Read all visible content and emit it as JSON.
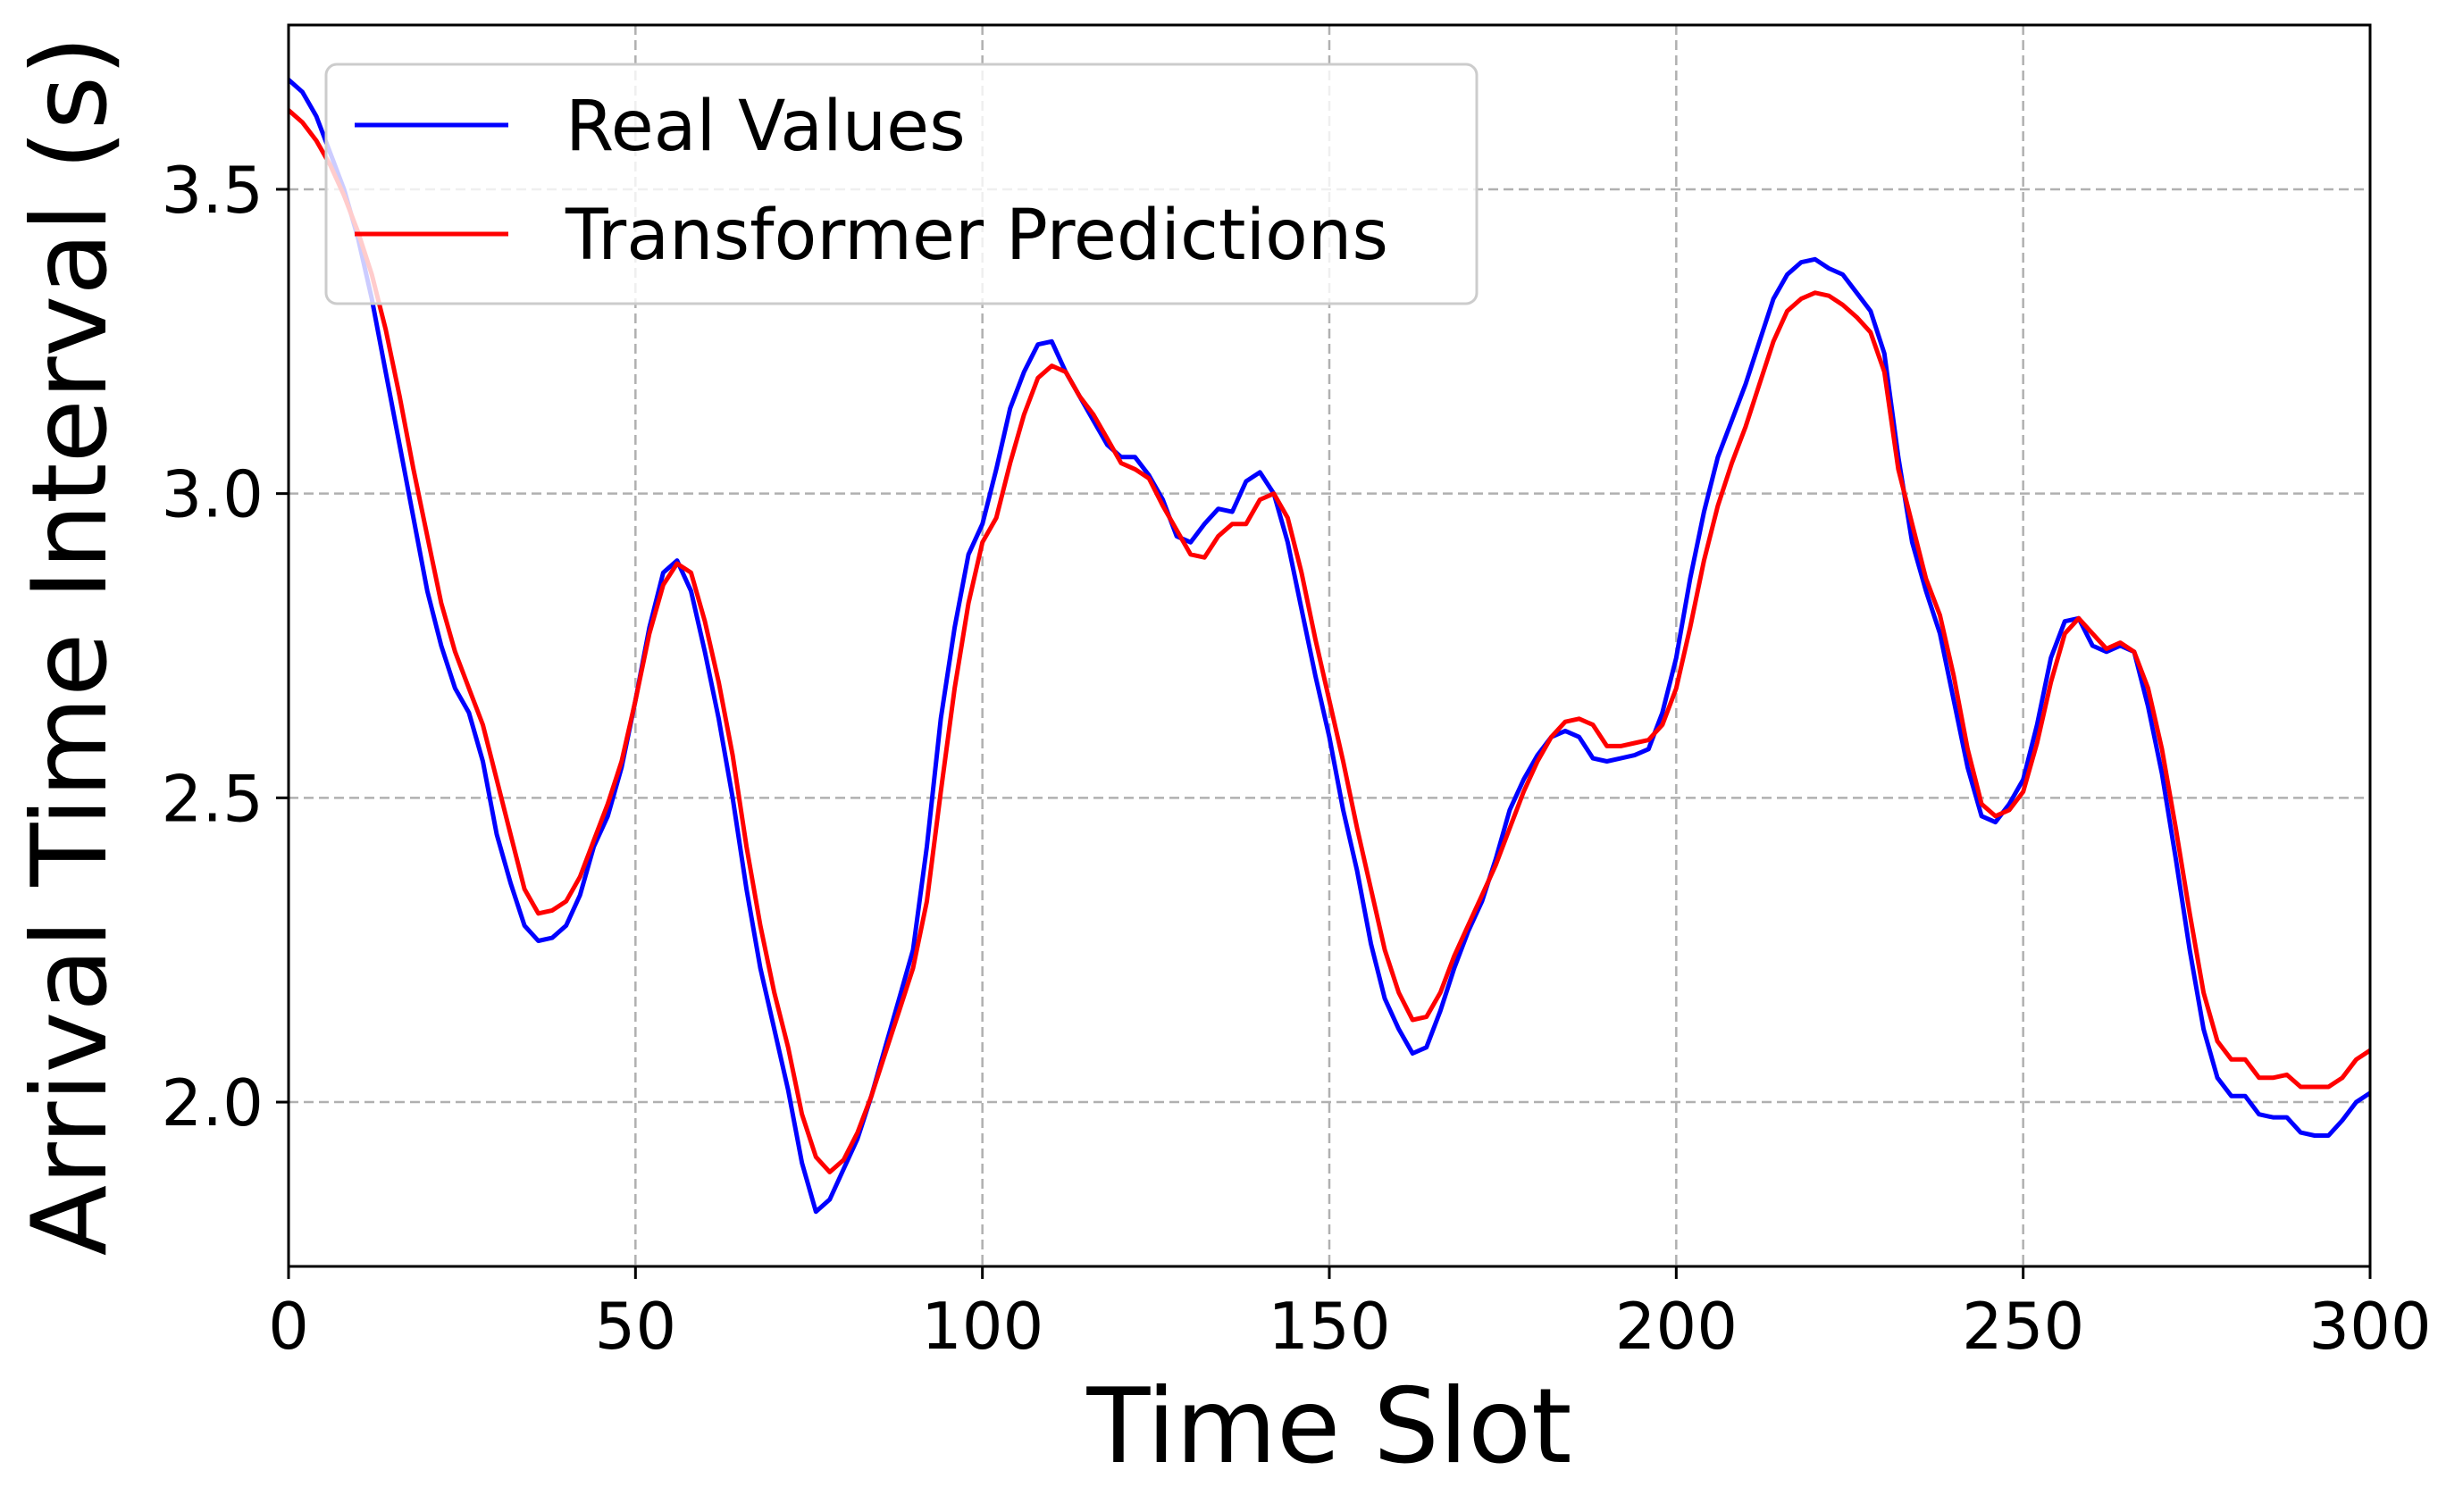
{
  "chart_data": {
    "type": "line",
    "xlabel": "Time Slot",
    "ylabel": "Arrival Time Interval (s)",
    "xlim": [
      0,
      300
    ],
    "ylim": [
      1.73,
      3.77
    ],
    "xticks": [
      0,
      50,
      100,
      150,
      200,
      250,
      300
    ],
    "yticks": [
      2.0,
      2.5,
      3.0,
      3.5
    ],
    "xtick_labels": [
      "0",
      "50",
      "100",
      "150",
      "200",
      "250",
      "300"
    ],
    "ytick_labels": [
      "2.0",
      "2.5",
      "3.0",
      "3.5"
    ],
    "grid": true,
    "legend_position": "top-left",
    "series": [
      {
        "name": "Real Values",
        "color": "#0000ff",
        "points": [
          [
            0,
            3.68
          ],
          [
            2,
            3.66
          ],
          [
            4,
            3.62
          ],
          [
            6,
            3.56
          ],
          [
            8,
            3.5
          ],
          [
            10,
            3.42
          ],
          [
            12,
            3.32
          ],
          [
            14,
            3.2
          ],
          [
            16,
            3.08
          ],
          [
            18,
            2.96
          ],
          [
            20,
            2.84
          ],
          [
            22,
            2.75
          ],
          [
            24,
            2.68
          ],
          [
            26,
            2.64
          ],
          [
            28,
            2.56
          ],
          [
            30,
            2.44
          ],
          [
            32,
            2.36
          ],
          [
            34,
            2.29
          ],
          [
            36,
            2.265
          ],
          [
            38,
            2.27
          ],
          [
            40,
            2.29
          ],
          [
            42,
            2.34
          ],
          [
            44,
            2.42
          ],
          [
            46,
            2.47
          ],
          [
            48,
            2.55
          ],
          [
            50,
            2.66
          ],
          [
            52,
            2.78
          ],
          [
            54,
            2.87
          ],
          [
            56,
            2.89
          ],
          [
            58,
            2.84
          ],
          [
            60,
            2.74
          ],
          [
            62,
            2.63
          ],
          [
            64,
            2.5
          ],
          [
            66,
            2.35
          ],
          [
            68,
            2.22
          ],
          [
            70,
            2.12
          ],
          [
            72,
            2.02
          ],
          [
            74,
            1.9
          ],
          [
            76,
            1.82
          ],
          [
            78,
            1.84
          ],
          [
            80,
            1.89
          ],
          [
            82,
            1.94
          ],
          [
            84,
            2.01
          ],
          [
            86,
            2.09
          ],
          [
            88,
            2.17
          ],
          [
            90,
            2.25
          ],
          [
            92,
            2.42
          ],
          [
            94,
            2.63
          ],
          [
            96,
            2.78
          ],
          [
            98,
            2.9
          ],
          [
            100,
            2.95
          ],
          [
            102,
            3.04
          ],
          [
            104,
            3.14
          ],
          [
            106,
            3.2
          ],
          [
            108,
            3.245
          ],
          [
            110,
            3.25
          ],
          [
            112,
            3.2
          ],
          [
            114,
            3.16
          ],
          [
            116,
            3.12
          ],
          [
            118,
            3.08
          ],
          [
            120,
            3.06
          ],
          [
            122,
            3.06
          ],
          [
            124,
            3.03
          ],
          [
            126,
            2.99
          ],
          [
            128,
            2.93
          ],
          [
            130,
            2.92
          ],
          [
            132,
            2.95
          ],
          [
            134,
            2.975
          ],
          [
            136,
            2.97
          ],
          [
            138,
            3.02
          ],
          [
            140,
            3.035
          ],
          [
            142,
            3.0
          ],
          [
            144,
            2.92
          ],
          [
            146,
            2.81
          ],
          [
            148,
            2.7
          ],
          [
            150,
            2.6
          ],
          [
            152,
            2.48
          ],
          [
            154,
            2.38
          ],
          [
            156,
            2.26
          ],
          [
            158,
            2.17
          ],
          [
            160,
            2.12
          ],
          [
            162,
            2.08
          ],
          [
            164,
            2.09
          ],
          [
            166,
            2.15
          ],
          [
            168,
            2.22
          ],
          [
            170,
            2.28
          ],
          [
            172,
            2.33
          ],
          [
            174,
            2.4
          ],
          [
            176,
            2.48
          ],
          [
            178,
            2.53
          ],
          [
            180,
            2.57
          ],
          [
            182,
            2.6
          ],
          [
            184,
            2.61
          ],
          [
            186,
            2.6
          ],
          [
            188,
            2.565
          ],
          [
            190,
            2.56
          ],
          [
            192,
            2.565
          ],
          [
            194,
            2.57
          ],
          [
            196,
            2.58
          ],
          [
            198,
            2.64
          ],
          [
            200,
            2.73
          ],
          [
            202,
            2.86
          ],
          [
            204,
            2.97
          ],
          [
            206,
            3.06
          ],
          [
            208,
            3.12
          ],
          [
            210,
            3.18
          ],
          [
            212,
            3.25
          ],
          [
            214,
            3.32
          ],
          [
            216,
            3.36
          ],
          [
            218,
            3.38
          ],
          [
            220,
            3.385
          ],
          [
            222,
            3.37
          ],
          [
            224,
            3.36
          ],
          [
            226,
            3.33
          ],
          [
            228,
            3.3
          ],
          [
            230,
            3.23
          ],
          [
            232,
            3.06
          ],
          [
            234,
            2.92
          ],
          [
            236,
            2.84
          ],
          [
            238,
            2.77
          ],
          [
            240,
            2.66
          ],
          [
            242,
            2.55
          ],
          [
            244,
            2.47
          ],
          [
            246,
            2.46
          ],
          [
            248,
            2.49
          ],
          [
            250,
            2.53
          ],
          [
            252,
            2.62
          ],
          [
            254,
            2.73
          ],
          [
            256,
            2.79
          ],
          [
            258,
            2.795
          ],
          [
            260,
            2.75
          ],
          [
            262,
            2.74
          ],
          [
            264,
            2.75
          ],
          [
            266,
            2.74
          ],
          [
            268,
            2.65
          ],
          [
            270,
            2.54
          ],
          [
            272,
            2.4
          ],
          [
            274,
            2.25
          ],
          [
            276,
            2.12
          ],
          [
            278,
            2.04
          ],
          [
            280,
            2.01
          ],
          [
            282,
            2.01
          ],
          [
            284,
            1.98
          ],
          [
            286,
            1.975
          ],
          [
            288,
            1.975
          ],
          [
            290,
            1.95
          ],
          [
            292,
            1.945
          ],
          [
            294,
            1.945
          ],
          [
            296,
            1.97
          ],
          [
            298,
            2.0
          ],
          [
            300,
            2.015
          ]
        ]
      },
      {
        "name": "Transformer Predictions",
        "color": "#ff0000",
        "points": [
          [
            0,
            3.63
          ],
          [
            2,
            3.61
          ],
          [
            4,
            3.58
          ],
          [
            6,
            3.54
          ],
          [
            8,
            3.49
          ],
          [
            10,
            3.43
          ],
          [
            12,
            3.36
          ],
          [
            14,
            3.27
          ],
          [
            16,
            3.16
          ],
          [
            18,
            3.04
          ],
          [
            20,
            2.93
          ],
          [
            22,
            2.82
          ],
          [
            24,
            2.74
          ],
          [
            26,
            2.68
          ],
          [
            28,
            2.62
          ],
          [
            30,
            2.53
          ],
          [
            32,
            2.44
          ],
          [
            34,
            2.35
          ],
          [
            36,
            2.31
          ],
          [
            38,
            2.315
          ],
          [
            40,
            2.33
          ],
          [
            42,
            2.37
          ],
          [
            44,
            2.43
          ],
          [
            46,
            2.49
          ],
          [
            48,
            2.56
          ],
          [
            50,
            2.66
          ],
          [
            52,
            2.77
          ],
          [
            54,
            2.85
          ],
          [
            56,
            2.885
          ],
          [
            58,
            2.87
          ],
          [
            60,
            2.79
          ],
          [
            62,
            2.69
          ],
          [
            64,
            2.57
          ],
          [
            66,
            2.42
          ],
          [
            68,
            2.29
          ],
          [
            70,
            2.18
          ],
          [
            72,
            2.09
          ],
          [
            74,
            1.98
          ],
          [
            76,
            1.91
          ],
          [
            78,
            1.885
          ],
          [
            80,
            1.905
          ],
          [
            82,
            1.95
          ],
          [
            84,
            2.01
          ],
          [
            86,
            2.08
          ],
          [
            88,
            2.15
          ],
          [
            90,
            2.22
          ],
          [
            92,
            2.33
          ],
          [
            94,
            2.51
          ],
          [
            96,
            2.68
          ],
          [
            98,
            2.82
          ],
          [
            100,
            2.92
          ],
          [
            102,
            2.96
          ],
          [
            104,
            3.05
          ],
          [
            106,
            3.13
          ],
          [
            108,
            3.19
          ],
          [
            110,
            3.21
          ],
          [
            112,
            3.2
          ],
          [
            114,
            3.16
          ],
          [
            116,
            3.13
          ],
          [
            118,
            3.09
          ],
          [
            120,
            3.05
          ],
          [
            122,
            3.04
          ],
          [
            124,
            3.025
          ],
          [
            126,
            2.98
          ],
          [
            128,
            2.94
          ],
          [
            130,
            2.9
          ],
          [
            132,
            2.895
          ],
          [
            134,
            2.93
          ],
          [
            136,
            2.95
          ],
          [
            138,
            2.95
          ],
          [
            140,
            2.99
          ],
          [
            142,
            3.0
          ],
          [
            144,
            2.96
          ],
          [
            146,
            2.87
          ],
          [
            148,
            2.76
          ],
          [
            150,
            2.66
          ],
          [
            152,
            2.56
          ],
          [
            154,
            2.45
          ],
          [
            156,
            2.35
          ],
          [
            158,
            2.25
          ],
          [
            160,
            2.18
          ],
          [
            162,
            2.135
          ],
          [
            164,
            2.14
          ],
          [
            166,
            2.18
          ],
          [
            168,
            2.24
          ],
          [
            170,
            2.29
          ],
          [
            172,
            2.34
          ],
          [
            174,
            2.39
          ],
          [
            176,
            2.45
          ],
          [
            178,
            2.51
          ],
          [
            180,
            2.56
          ],
          [
            182,
            2.6
          ],
          [
            184,
            2.625
          ],
          [
            186,
            2.63
          ],
          [
            188,
            2.62
          ],
          [
            190,
            2.585
          ],
          [
            192,
            2.585
          ],
          [
            194,
            2.59
          ],
          [
            196,
            2.595
          ],
          [
            198,
            2.62
          ],
          [
            200,
            2.68
          ],
          [
            202,
            2.78
          ],
          [
            204,
            2.89
          ],
          [
            206,
            2.98
          ],
          [
            208,
            3.05
          ],
          [
            210,
            3.11
          ],
          [
            212,
            3.18
          ],
          [
            214,
            3.25
          ],
          [
            216,
            3.3
          ],
          [
            218,
            3.32
          ],
          [
            220,
            3.33
          ],
          [
            222,
            3.325
          ],
          [
            224,
            3.31
          ],
          [
            226,
            3.29
          ],
          [
            228,
            3.265
          ],
          [
            230,
            3.2
          ],
          [
            232,
            3.04
          ],
          [
            234,
            2.95
          ],
          [
            236,
            2.86
          ],
          [
            238,
            2.8
          ],
          [
            240,
            2.7
          ],
          [
            242,
            2.58
          ],
          [
            244,
            2.49
          ],
          [
            246,
            2.47
          ],
          [
            248,
            2.48
          ],
          [
            250,
            2.51
          ],
          [
            252,
            2.59
          ],
          [
            254,
            2.69
          ],
          [
            256,
            2.77
          ],
          [
            258,
            2.795
          ],
          [
            260,
            2.77
          ],
          [
            262,
            2.745
          ],
          [
            264,
            2.755
          ],
          [
            266,
            2.74
          ],
          [
            268,
            2.68
          ],
          [
            270,
            2.58
          ],
          [
            272,
            2.45
          ],
          [
            274,
            2.31
          ],
          [
            276,
            2.18
          ],
          [
            278,
            2.1
          ],
          [
            280,
            2.07
          ],
          [
            282,
            2.07
          ],
          [
            284,
            2.04
          ],
          [
            286,
            2.04
          ],
          [
            288,
            2.045
          ],
          [
            290,
            2.025
          ],
          [
            292,
            2.025
          ],
          [
            294,
            2.025
          ],
          [
            296,
            2.04
          ],
          [
            298,
            2.07
          ],
          [
            300,
            2.085
          ]
        ]
      }
    ]
  }
}
